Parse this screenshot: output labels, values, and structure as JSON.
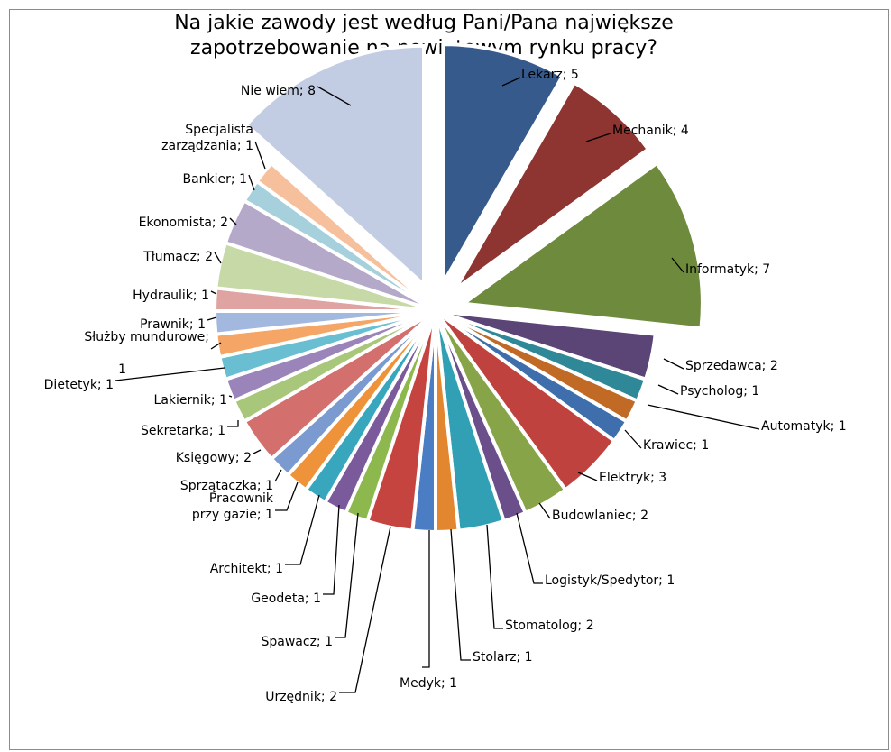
{
  "chart_data": {
    "type": "pie",
    "title": [
      "Na jakie zawody jest według Pani/Pana największe",
      "zapotrzebowanie na powiatowym rynku pracy?"
    ],
    "slices": [
      {
        "name": "Lekarz",
        "value": 5,
        "color": "#375a8c",
        "label": [
          "Lekarz; 5"
        ]
      },
      {
        "name": "Mechanik",
        "value": 4,
        "color": "#8e3431",
        "label": [
          "Mechanik; 4"
        ]
      },
      {
        "name": "Informatyk",
        "value": 7,
        "color": "#6e8a3c",
        "label": [
          "Informatyk; 7"
        ]
      },
      {
        "name": "Sprzedawca",
        "value": 2,
        "color": "#5b4476",
        "label": [
          "Sprzedawca; 2"
        ]
      },
      {
        "name": "Psycholog",
        "value": 1,
        "color": "#2f8898",
        "label": [
          "Psycholog; 1"
        ]
      },
      {
        "name": "Automatyk",
        "value": 1,
        "color": "#c06a26",
        "label": [
          "Automatyk; 1"
        ]
      },
      {
        "name": "Krawiec",
        "value": 1,
        "color": "#3f6ead",
        "label": [
          "Krawiec; 1"
        ]
      },
      {
        "name": "Elektryk",
        "value": 3,
        "color": "#c0423e",
        "label": [
          "Elektryk; 3"
        ]
      },
      {
        "name": "Budowlaniec",
        "value": 2,
        "color": "#87a548",
        "label": [
          "Budowlaniec; 2"
        ]
      },
      {
        "name": "Logistyk/Spedytor",
        "value": 1,
        "color": "#6b4f8a",
        "label": [
          "Logistyk/Spedytor; 1"
        ]
      },
      {
        "name": "Stomatolog",
        "value": 2,
        "color": "#31a0b4",
        "label": [
          "Stomatolog; 2"
        ]
      },
      {
        "name": "Stolarz",
        "value": 1,
        "color": "#e2862f",
        "label": [
          "Stolarz; 1"
        ]
      },
      {
        "name": "Medyk",
        "value": 1,
        "color": "#4a7dc4",
        "label": [
          "Medyk; 1"
        ]
      },
      {
        "name": "Urzędnik",
        "value": 2,
        "color": "#c5443f",
        "label": [
          "Urzędnik; 2"
        ]
      },
      {
        "name": "Spawacz",
        "value": 1,
        "color": "#8db84e",
        "label": [
          "Spawacz; 1"
        ]
      },
      {
        "name": "Geodeta",
        "value": 1,
        "color": "#7b5a9c",
        "label": [
          "Geodeta; 1"
        ]
      },
      {
        "name": "Architekt",
        "value": 1,
        "color": "#38a7bd",
        "label": [
          "Architekt; 1"
        ]
      },
      {
        "name": "Pracownik przy gazie",
        "value": 1,
        "color": "#ee9339",
        "label": [
          "Pracownik",
          "przy gazie; 1"
        ]
      },
      {
        "name": "Sprzątaczka",
        "value": 1,
        "color": "#7a9ad0",
        "label": [
          "Sprzątaczka; 1"
        ]
      },
      {
        "name": "Księgowy",
        "value": 2,
        "color": "#d3706d",
        "label": [
          "Księgowy; 2"
        ]
      },
      {
        "name": "Sekretarka",
        "value": 1,
        "color": "#a8c77a",
        "label": [
          "Sekretarka; 1"
        ]
      },
      {
        "name": "Lakiernik",
        "value": 1,
        "color": "#9a84ba",
        "label": [
          "Lakiernik; 1"
        ]
      },
      {
        "name": "Dietetyk",
        "value": 1,
        "color": "#69bfd1",
        "label": [
          "Dietetyk; 1"
        ]
      },
      {
        "name": "Służby mundurowe",
        "value": 1,
        "color": "#f5a666",
        "label": [
          "Służby mundurowe;",
          "1"
        ]
      },
      {
        "name": "Prawnik",
        "value": 1,
        "color": "#a3b8df",
        "label": [
          "Prawnik; 1"
        ]
      },
      {
        "name": "Hydraulik",
        "value": 1,
        "color": "#dfa3a1",
        "label": [
          "Hydraulik; 1"
        ]
      },
      {
        "name": "Tłumacz",
        "value": 2,
        "color": "#c6d9a6",
        "label": [
          "Tłumacz; 2"
        ]
      },
      {
        "name": "Ekonomista",
        "value": 2,
        "color": "#b5a9c9",
        "label": [
          "Ekonomista; 2"
        ]
      },
      {
        "name": "Bankier",
        "value": 1,
        "color": "#a6d0dc",
        "label": [
          "Bankier; 1"
        ]
      },
      {
        "name": "Specjalista zarządzania",
        "value": 1,
        "color": "#f7c09c",
        "label": [
          "Specjalista",
          "zarządzania; 1"
        ]
      },
      {
        "name": "Nie wiem",
        "value": 8,
        "color": "#c2cce2",
        "label": [
          "Nie wiem; 8"
        ]
      }
    ]
  }
}
